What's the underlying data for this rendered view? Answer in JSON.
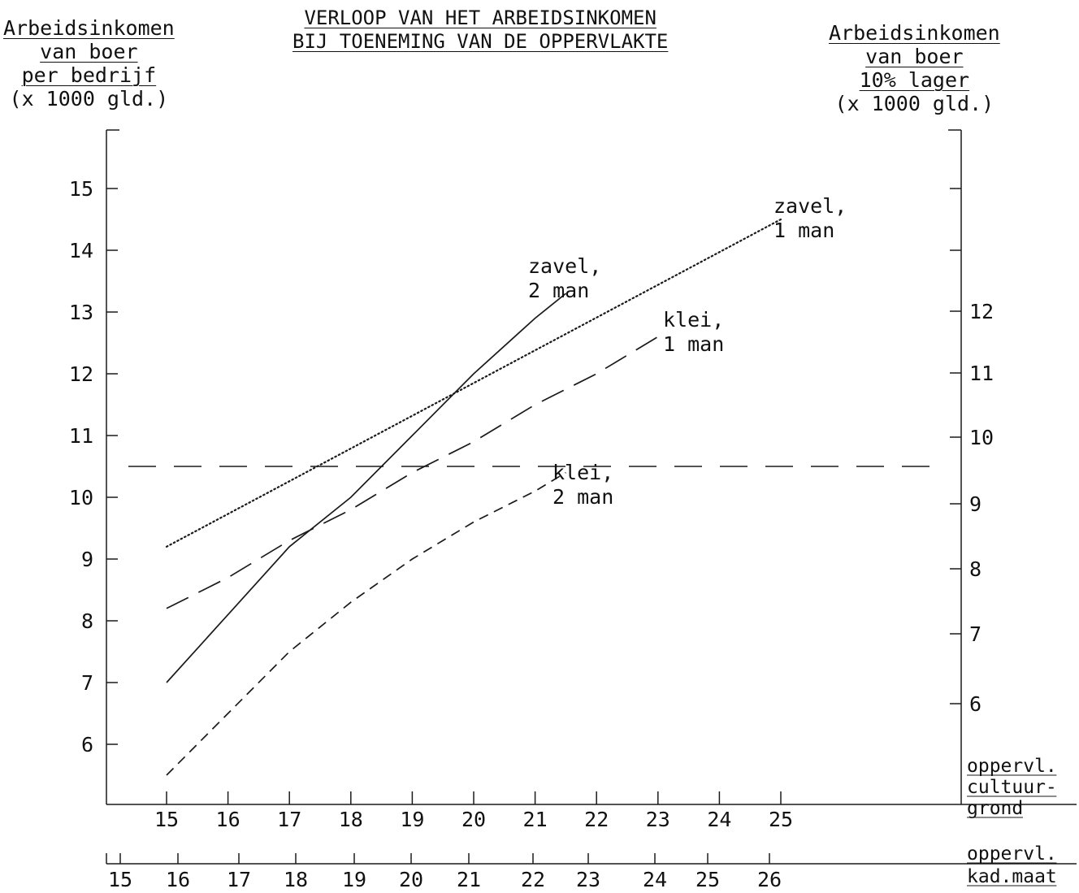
{
  "chart_data": {
    "type": "line",
    "title": [
      "VERLOOP VAN HET ARBEIDSINKOMEN",
      "BIJ TOENEMING VAN DE OPPERVLAKTE"
    ],
    "ylabel_left": [
      "Arbeidsinkomen",
      "van boer",
      "per bedrijf",
      "(x 1000 gld.)"
    ],
    "ylabel_right": [
      "Arbeidsinkomen",
      "van boer",
      "10% lager",
      "(x 1000 gld.)"
    ],
    "xlabel_primary": [
      "oppervl.",
      "cultuur-",
      "grond"
    ],
    "xlabel_secondary": [
      "oppervl.",
      "kad.maat"
    ],
    "y_left": {
      "min": 5.0,
      "max": 16.0,
      "ticks": [
        6,
        7,
        8,
        9,
        10,
        11,
        12,
        13,
        14,
        15
      ]
    },
    "y_right": {
      "ticks": [
        6,
        7,
        8,
        9,
        10,
        11,
        12
      ]
    },
    "x_primary": {
      "min": 14.0,
      "max": 27.0,
      "ticks": [
        15,
        16,
        17,
        18,
        19,
        20,
        21,
        22,
        23,
        24,
        25
      ]
    },
    "x_secondary": {
      "ticks": [
        15,
        16,
        17,
        18,
        19,
        20,
        21,
        22,
        23,
        24,
        25,
        26
      ]
    },
    "reference_line": {
      "y": 10.5
    },
    "series": [
      {
        "label": [
          "zavel,",
          "1 man"
        ],
        "style": "dotted",
        "x": [
          15,
          25
        ],
        "y": [
          9.2,
          14.5
        ]
      },
      {
        "label": [
          "zavel,",
          "2 man"
        ],
        "style": "solid",
        "x": [
          15,
          16,
          17,
          18,
          19,
          20,
          21,
          21.5
        ],
        "y": [
          7.0,
          8.1,
          9.2,
          10.0,
          11.0,
          12.0,
          12.9,
          13.3
        ]
      },
      {
        "label": [
          "klei,",
          "1 man"
        ],
        "style": "long-dash",
        "x": [
          15,
          16,
          17,
          18,
          19,
          20,
          21,
          22,
          23
        ],
        "y": [
          8.2,
          8.7,
          9.3,
          9.8,
          10.4,
          10.9,
          11.5,
          12.0,
          12.6
        ]
      },
      {
        "label": [
          "klei,",
          "2 man"
        ],
        "style": "short-dash",
        "x": [
          15,
          16,
          17,
          18,
          19,
          20,
          21,
          21.5
        ],
        "y": [
          5.5,
          6.5,
          7.5,
          8.3,
          9.0,
          9.6,
          10.1,
          10.4
        ]
      }
    ]
  }
}
